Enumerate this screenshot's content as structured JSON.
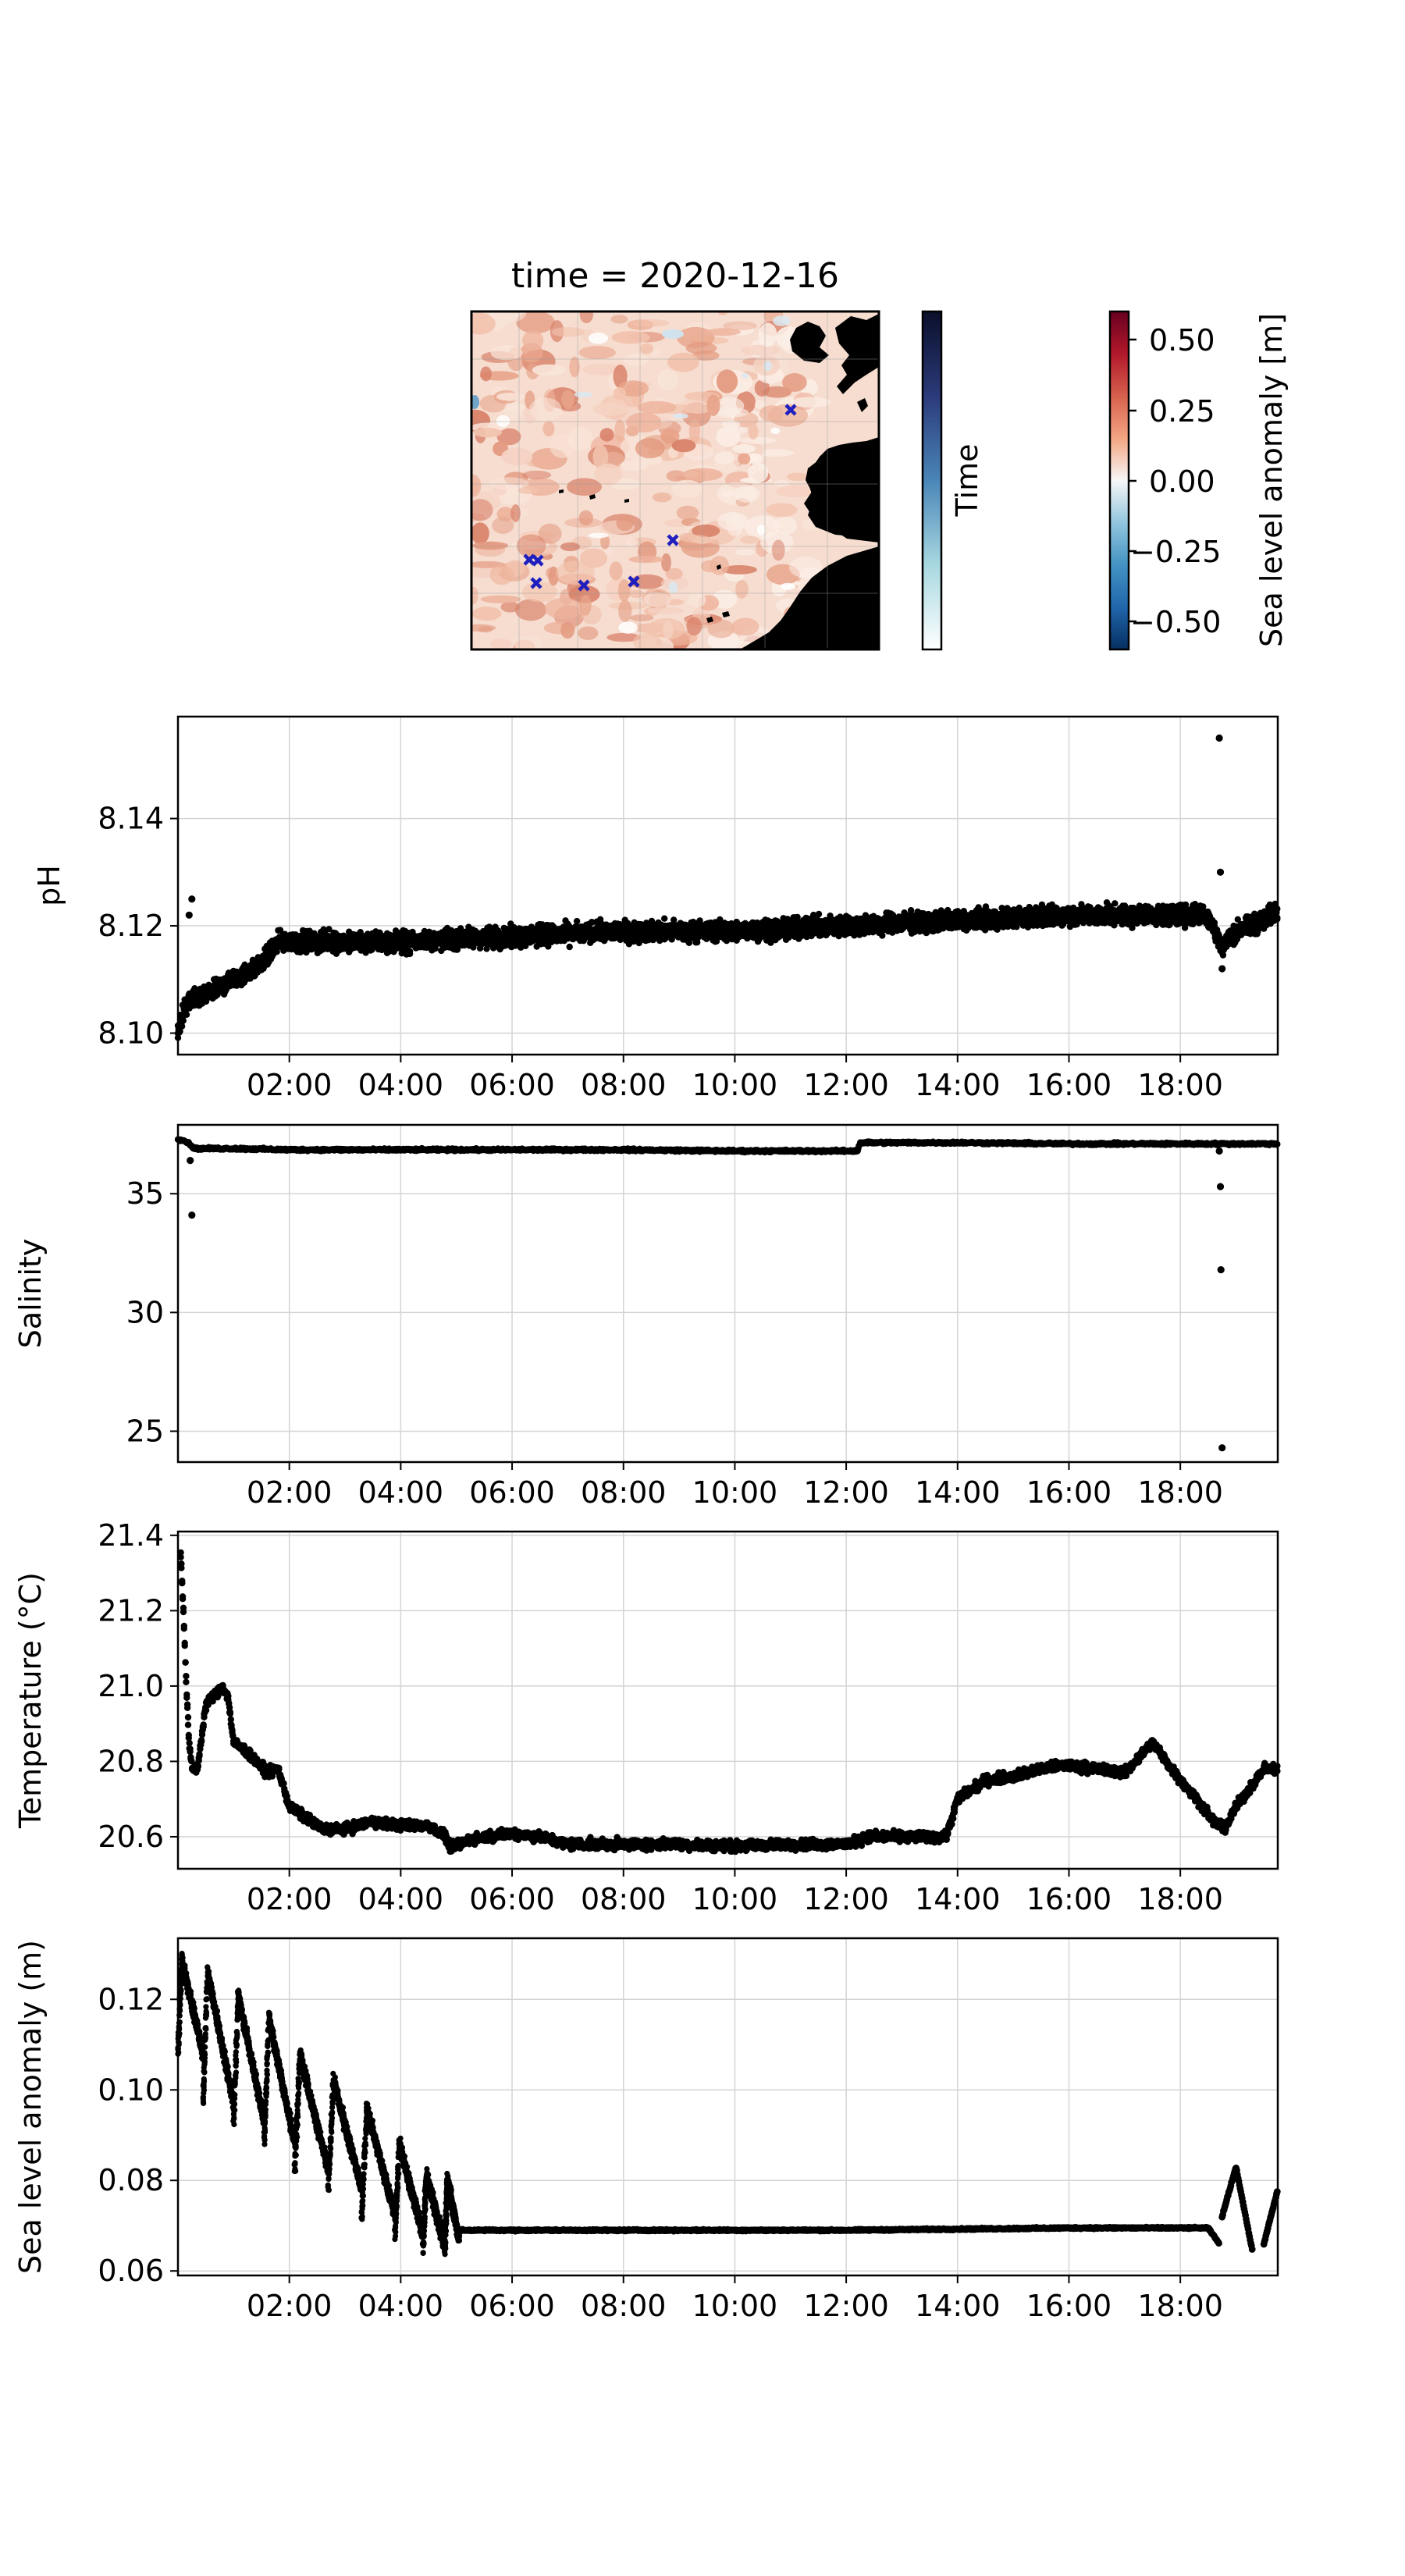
{
  "chart_data": [
    {
      "type": "heatmap",
      "title": "time = 2020-12-16",
      "colorbars": [
        {
          "label": "Time",
          "ticks": [],
          "colors": [
            "#ffffff",
            "#a8d8e0",
            "#4a86b8",
            "#2b3a7a",
            "#0a0f2a"
          ]
        },
        {
          "label": "Sea level anomaly [m]",
          "ticks": [
            "0.50",
            "0.25",
            "0.00",
            "−0.25",
            "−0.50"
          ],
          "range": [
            -0.6,
            0.6
          ],
          "colors": [
            "#053061",
            "#2166ac",
            "#4393c3",
            "#92c5de",
            "#f7f7f7",
            "#f4a582",
            "#d6604d",
            "#b2182b",
            "#67001f"
          ]
        }
      ],
      "markers": {
        "symbol": "x",
        "color": "#1f1fbf",
        "count": 7
      },
      "grid": true,
      "land_color": "#000000"
    },
    {
      "type": "scatter",
      "ylabel": "pH",
      "ylim": [
        8.096,
        8.159
      ],
      "yticks": [
        "8.10",
        "8.12",
        "8.14"
      ],
      "xticks": [
        "02:00",
        "04:00",
        "06:00",
        "08:00",
        "10:00",
        "12:00",
        "14:00",
        "16:00",
        "18:00"
      ],
      "xrange_hours": [
        0.0,
        19.75
      ],
      "grid": true,
      "series": [
        {
          "x": [
            0.0,
            0.1,
            0.2,
            0.5,
            1.0,
            1.5,
            1.8,
            2.5,
            4.0,
            6.0,
            8.0,
            10.0,
            12.0,
            14.0,
            16.0,
            18.0,
            18.5,
            18.75,
            19.0,
            19.5,
            19.75
          ],
          "y": [
            8.1,
            8.104,
            8.106,
            8.107,
            8.11,
            8.113,
            8.117,
            8.117,
            8.117,
            8.118,
            8.119,
            8.119,
            8.12,
            8.121,
            8.122,
            8.122,
            8.122,
            8.116,
            8.119,
            8.121,
            8.123
          ],
          "outliers": [
            [
              0.25,
              8.125
            ],
            [
              0.2,
              8.122
            ],
            [
              18.7,
              8.155
            ],
            [
              18.72,
              8.13
            ],
            [
              18.75,
              8.112
            ]
          ]
        }
      ]
    },
    {
      "type": "scatter",
      "ylabel": "Salinity",
      "ylim": [
        23.7,
        37.9
      ],
      "yticks": [
        "25",
        "30",
        "35"
      ],
      "xticks": [
        "02:00",
        "04:00",
        "06:00",
        "08:00",
        "10:00",
        "12:00",
        "14:00",
        "16:00",
        "18:00"
      ],
      "xrange_hours": [
        0.0,
        19.75
      ],
      "grid": true,
      "series": [
        {
          "x": [
            0.0,
            0.15,
            0.3,
            1.0,
            2.0,
            4.0,
            6.0,
            8.0,
            10.0,
            12.2,
            12.25,
            14.0,
            16.0,
            18.0,
            19.75
          ],
          "y": [
            37.3,
            37.2,
            36.9,
            36.9,
            36.85,
            36.85,
            36.85,
            36.85,
            36.8,
            36.8,
            37.15,
            37.15,
            37.1,
            37.1,
            37.1
          ],
          "outliers": [
            [
              0.25,
              34.1
            ],
            [
              0.22,
              36.4
            ],
            [
              18.7,
              36.8
            ],
            [
              18.72,
              35.3
            ],
            [
              18.73,
              31.8
            ],
            [
              18.75,
              24.3
            ]
          ]
        }
      ]
    },
    {
      "type": "scatter",
      "ylabel": "Temperature (°C)",
      "ylim": [
        20.515,
        21.41
      ],
      "yticks": [
        "20.6",
        "20.8",
        "21.0",
        "21.2",
        "21.4"
      ],
      "xticks": [
        "02:00",
        "04:00",
        "06:00",
        "08:00",
        "10:00",
        "12:00",
        "14:00",
        "16:00",
        "18:00"
      ],
      "xrange_hours": [
        0.0,
        19.75
      ],
      "grid": true,
      "series": [
        {
          "x": [
            0.05,
            0.1,
            0.15,
            0.2,
            0.25,
            0.35,
            0.5,
            0.8,
            0.9,
            1.0,
            1.2,
            1.4,
            1.6,
            1.8,
            2.0,
            2.3,
            2.6,
            3.0,
            3.5,
            4.0,
            4.5,
            4.8,
            4.9,
            5.2,
            5.5,
            6.0,
            6.5,
            7.0,
            8.0,
            9.0,
            10.0,
            11.0,
            12.0,
            12.4,
            13.0,
            13.5,
            13.8,
            14.0,
            14.5,
            15.0,
            15.5,
            16.0,
            16.5,
            17.0,
            17.5,
            18.0,
            18.3,
            18.6,
            18.8,
            19.0,
            19.2,
            19.5,
            19.75
          ],
          "y": [
            21.35,
            21.2,
            21.0,
            20.85,
            20.78,
            20.78,
            20.95,
            21.0,
            20.97,
            20.85,
            20.83,
            20.8,
            20.77,
            20.78,
            20.68,
            20.65,
            20.62,
            20.62,
            20.64,
            20.63,
            20.63,
            20.6,
            20.57,
            20.59,
            20.6,
            20.61,
            20.6,
            20.58,
            20.58,
            20.58,
            20.575,
            20.58,
            20.58,
            20.6,
            20.6,
            20.6,
            20.6,
            20.7,
            20.75,
            20.76,
            20.78,
            20.79,
            20.78,
            20.77,
            20.85,
            20.75,
            20.7,
            20.64,
            20.62,
            20.68,
            20.72,
            20.78,
            20.78
          ]
        }
      ]
    },
    {
      "type": "scatter",
      "ylabel": "Sea level anomaly (m)",
      "ylim": [
        0.059,
        0.1335
      ],
      "yticks": [
        "0.06",
        "0.08",
        "0.10",
        "0.12"
      ],
      "xticks": [
        "02:00",
        "04:00",
        "06:00",
        "08:00",
        "10:00",
        "12:00",
        "14:00",
        "16:00",
        "18:00"
      ],
      "xrange_hours": [
        0.0,
        19.75
      ],
      "grid": true,
      "sawtooth_cycles": [
        {
          "x0": 0.0,
          "x1": 0.45,
          "ylo": 0.108,
          "yhi": 0.129
        },
        {
          "x0": 0.45,
          "x1": 1.0,
          "ylo": 0.097,
          "yhi": 0.126
        },
        {
          "x0": 1.0,
          "x1": 1.55,
          "ylo": 0.093,
          "yhi": 0.121
        },
        {
          "x0": 1.55,
          "x1": 2.1,
          "ylo": 0.088,
          "yhi": 0.116
        },
        {
          "x0": 2.1,
          "x1": 2.7,
          "ylo": 0.082,
          "yhi": 0.108
        },
        {
          "x0": 2.7,
          "x1": 3.3,
          "ylo": 0.078,
          "yhi": 0.102
        },
        {
          "x0": 3.3,
          "x1": 3.9,
          "ylo": 0.072,
          "yhi": 0.096
        },
        {
          "x0": 3.9,
          "x1": 4.4,
          "ylo": 0.068,
          "yhi": 0.088
        },
        {
          "x0": 4.4,
          "x1": 4.8,
          "ylo": 0.065,
          "yhi": 0.081
        },
        {
          "x0": 4.8,
          "x1": 5.05,
          "ylo": 0.067,
          "yhi": 0.08
        }
      ],
      "series": [
        {
          "x": [
            5.05,
            8.0,
            12.0,
            16.0,
            18.5
          ],
          "y": [
            0.069,
            0.069,
            0.069,
            0.0695,
            0.0695
          ]
        },
        {
          "x": [
            18.5,
            18.7
          ],
          "y": [
            0.0695,
            0.066
          ]
        },
        {
          "x": [
            18.75,
            19.0,
            19.3
          ],
          "y": [
            0.072,
            0.083,
            0.064
          ]
        },
        {
          "x": [
            19.5,
            19.75
          ],
          "y": [
            0.066,
            0.078
          ]
        }
      ]
    }
  ]
}
